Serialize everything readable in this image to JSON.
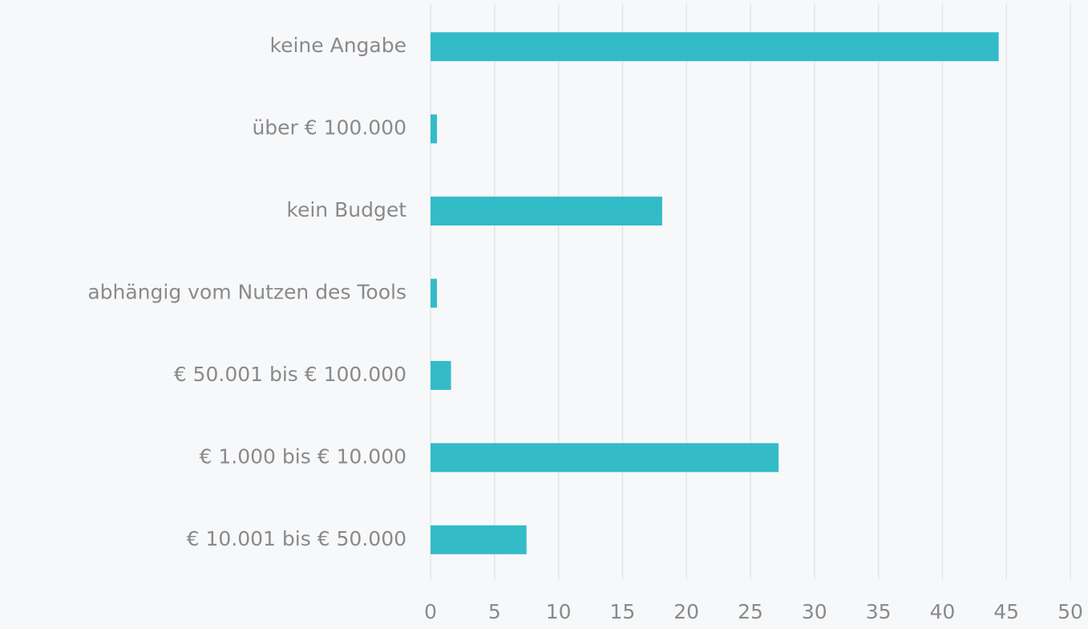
{
  "chart_data": {
    "type": "barh",
    "categories": [
      "keine Angabe",
      "über € 100.000",
      "kein Budget",
      "abhängig vom Nutzen des Tools",
      "€ 50.001 bis € 100.000",
      "€ 1.000 bis € 10.000",
      "€ 10.001 bis € 50.000"
    ],
    "values": [
      44.4,
      0.5,
      18.1,
      0.5,
      1.6,
      27.2,
      7.5
    ],
    "color": "#33bbc8",
    "xlim": [
      0,
      50
    ],
    "xticks": [
      0,
      5,
      10,
      15,
      20,
      25,
      30,
      35,
      40,
      45,
      50
    ],
    "grid": true
  }
}
